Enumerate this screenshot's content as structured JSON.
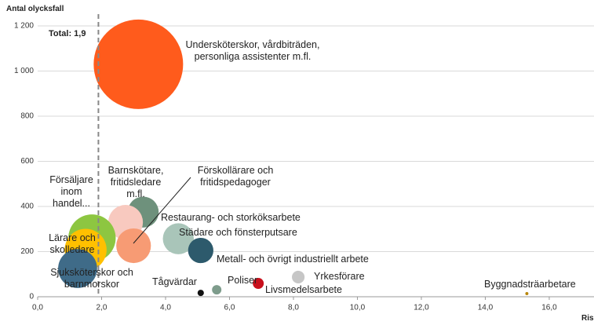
{
  "chart_data": {
    "type": "bubble",
    "y_label": "Antal olycksfall",
    "x_label": "Ris",
    "annotation": "Total: 1,9",
    "reference_x": 1.9,
    "labels": [
      "Undersköterskor, vårdbiträden, personliga assistenter m.fl.",
      "Restaurang- och storköksarbete",
      "Barnskötare, fritidsledare m.fl.",
      "Förskollärare och fritidspedagoger",
      "Städare och fönsterputsare",
      "Metall- och övrigt industriellt arbete",
      "Försäljare inom handel...",
      "Lärare och skolledare",
      "Sjuksköterskor och barnmorskor",
      "Tågvärdar",
      "Poliser",
      "Livsmedelsarbete",
      "Yrkesförare",
      "Byggnadsträarbetare"
    ],
    "x": [
      3.15,
      3.3,
      2.75,
      3.0,
      4.4,
      5.1,
      1.7,
      1.5,
      1.25,
      5.1,
      5.6,
      6.9,
      8.15,
      15.3
    ],
    "values": [
      1030,
      375,
      330,
      226,
      257,
      205,
      260,
      208,
      125,
      17,
      31,
      59,
      87,
      14
    ],
    "sizes": [
      100,
      12,
      15,
      15,
      12,
      8,
      28,
      22,
      19,
      0.5,
      1.1,
      1.5,
      2,
      0.12
    ],
    "colors": [
      "#ff5b1c",
      "#6e917c",
      "#f8c9bf",
      "#f79b74",
      "#a9c5b9",
      "#2d5a6c",
      "#8dc641",
      "#ffc000",
      "#3f6b88",
      "#111111",
      "#7e9c8c",
      "#c8101c",
      "#c6c6c6",
      "#b8860b"
    ],
    "xlim": [
      0,
      17.4
    ],
    "ylim": [
      0,
      1200
    ],
    "xticks": [
      {
        "value": 0,
        "label": "0,0"
      },
      {
        "value": 2,
        "label": "2,0"
      },
      {
        "value": 4,
        "label": "4,0"
      },
      {
        "value": 6,
        "label": "6,0"
      },
      {
        "value": 8,
        "label": "8,0"
      },
      {
        "value": 10,
        "label": "10,0"
      },
      {
        "value": 12,
        "label": "12,0"
      },
      {
        "value": 14,
        "label": "14,0"
      },
      {
        "value": 16,
        "label": "16,0"
      }
    ],
    "yticks": [
      0,
      200,
      400,
      600,
      800,
      {
        "value": 1000,
        "label": "1 000"
      },
      {
        "value": 1200,
        "label": "1 200"
      }
    ],
    "grid": true
  }
}
